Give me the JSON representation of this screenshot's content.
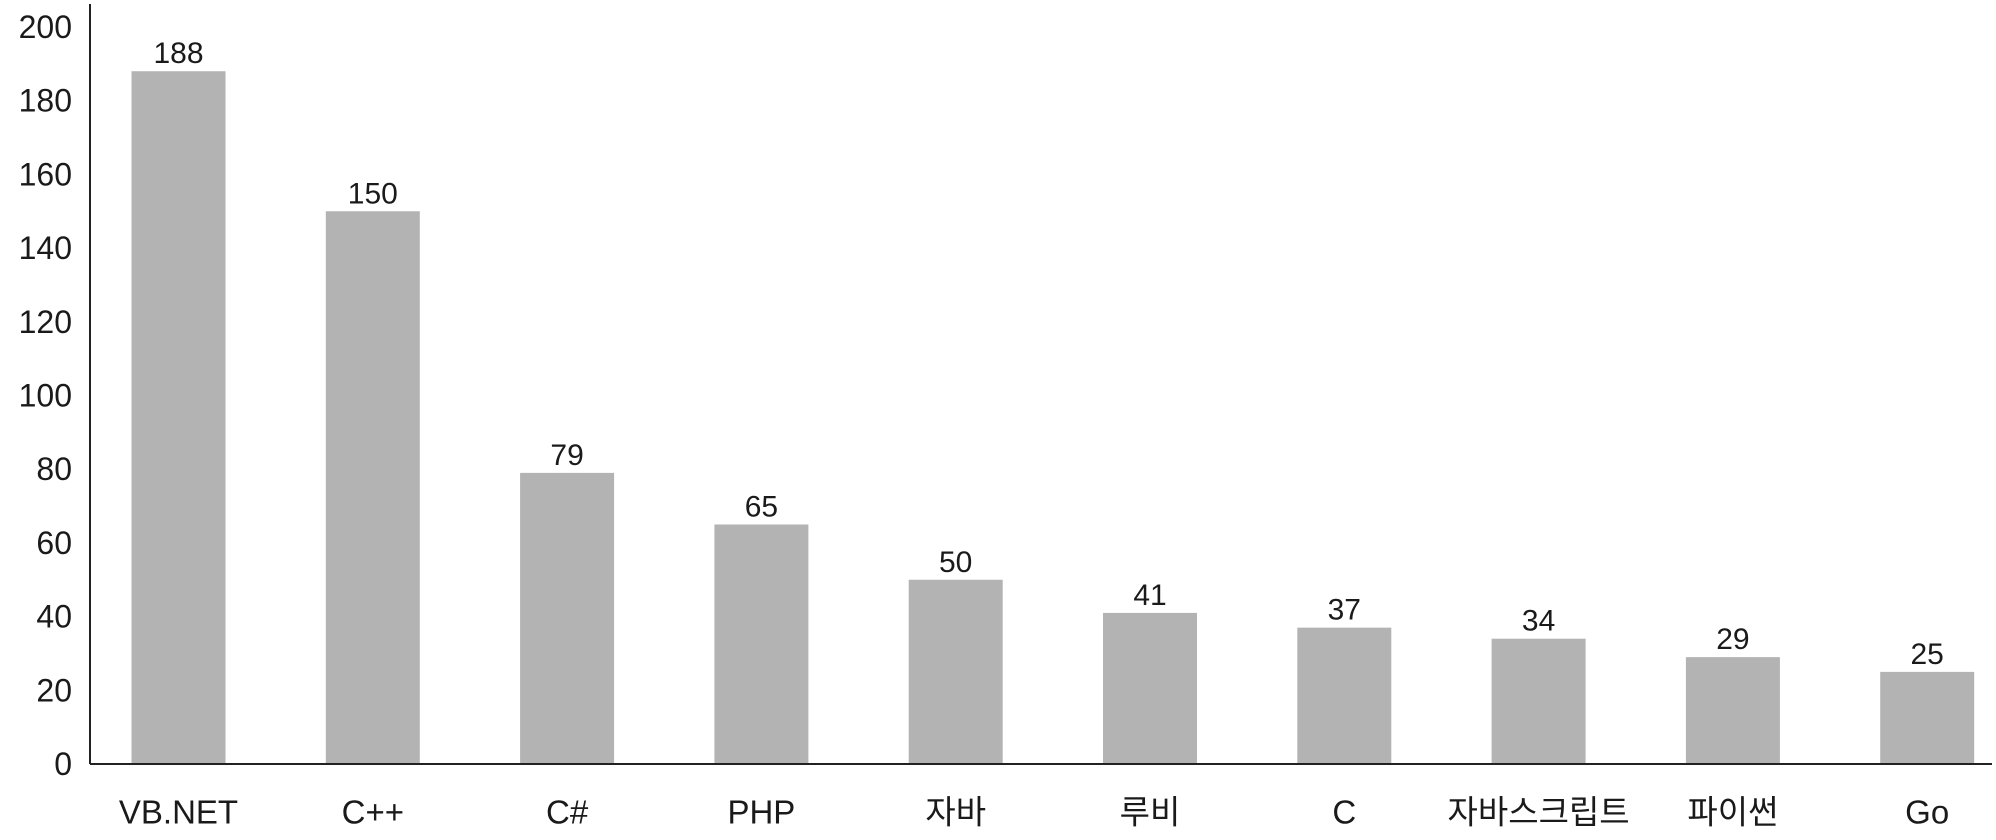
{
  "chart_data": {
    "type": "bar",
    "categories": [
      "VB.NET",
      "C++",
      "C#",
      "PHP",
      "자바",
      "루비",
      "C",
      "자바스크립트",
      "파이썬",
      "Go"
    ],
    "values": [
      188,
      150,
      79,
      65,
      50,
      41,
      37,
      34,
      29,
      25
    ],
    "data_labels": [
      "188",
      "150",
      "79",
      "65",
      "50",
      "41",
      "37",
      "34",
      "29",
      "25"
    ],
    "title": "",
    "xlabel": "",
    "ylabel": "",
    "ylim": [
      0,
      200
    ],
    "y_ticks": [
      "0",
      "20",
      "40",
      "60",
      "80",
      "100",
      "120",
      "140",
      "160",
      "180",
      "200"
    ],
    "grid": false,
    "legend": "none",
    "bar_color": "#b3b3b3",
    "axis_color": "#222222",
    "text_color": "#1a1a1a"
  }
}
